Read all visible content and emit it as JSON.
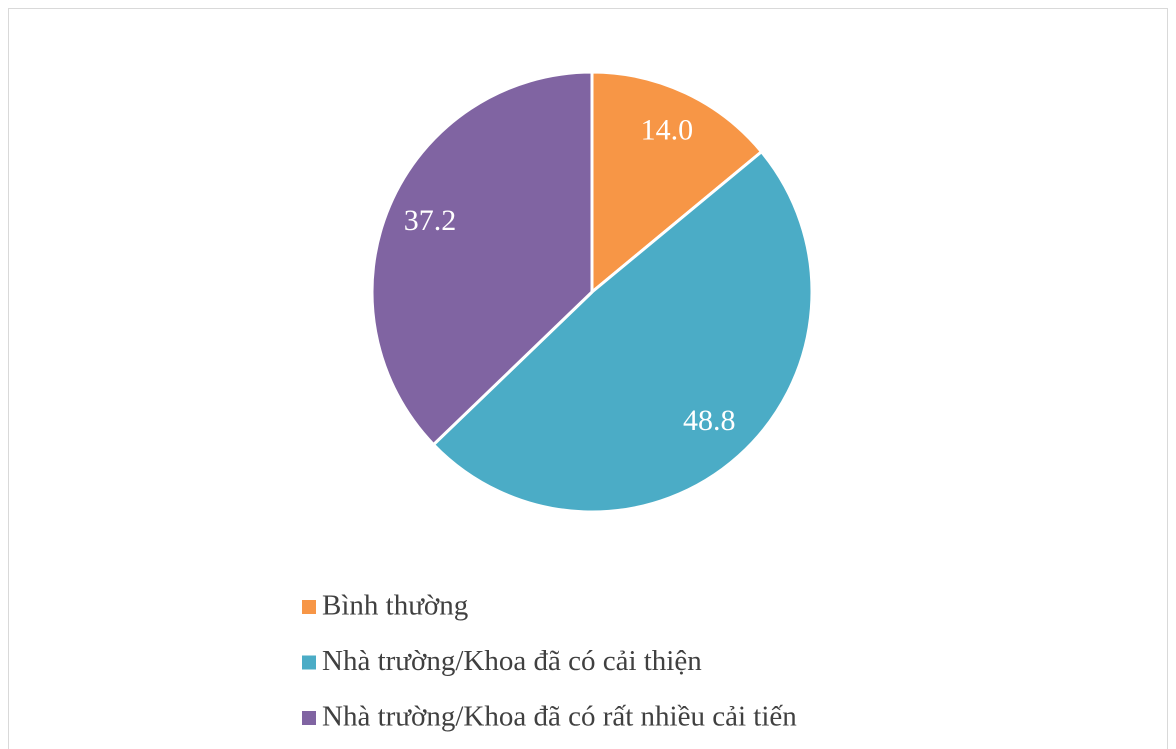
{
  "chart_data": {
    "type": "pie",
    "categories": [
      "Bình thường",
      "Nhà trường/Khoa đã có cải thiện",
      "Nhà trường/Khoa đã có rất nhiều cải tiến"
    ],
    "values": [
      14.0,
      48.8,
      37.2
    ],
    "value_labels": [
      "14.0",
      "48.8",
      "37.2"
    ],
    "colors": [
      "#f79646",
      "#4bacc6",
      "#8064a2"
    ],
    "legend": "bottom"
  }
}
